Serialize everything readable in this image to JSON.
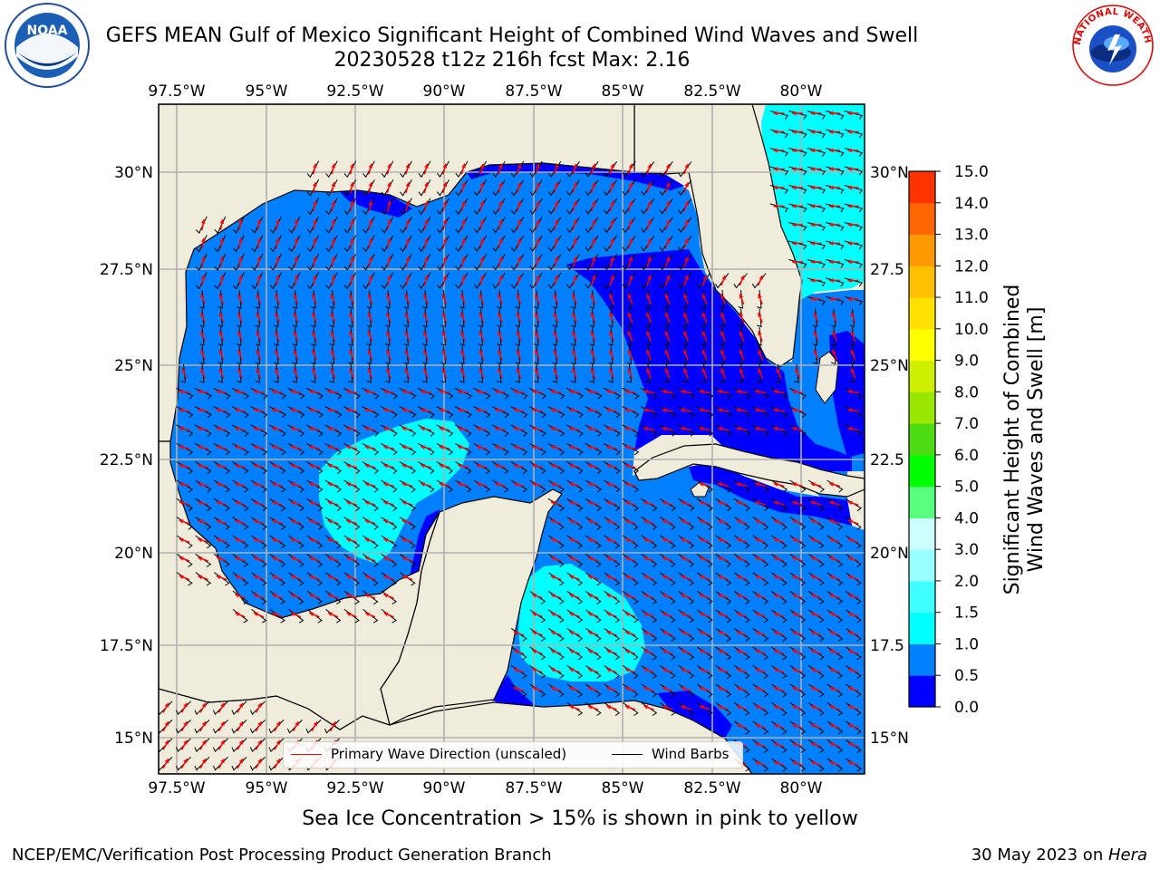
{
  "title": {
    "line1": "GEFS MEAN Gulf of Mexico Significant Height of Combined Wind Waves and Swell",
    "line2": "20230528 t12z 216h fcst   Max: 2.16"
  },
  "map": {
    "lon_ticks": [
      "97.5°W",
      "95°W",
      "92.5°W",
      "90°W",
      "87.5°W",
      "85°W",
      "82.5°W",
      "80°W"
    ],
    "lat_ticks": [
      "30°N",
      "27.5°N",
      "25°N",
      "22.5°N",
      "20°N",
      "17.5°N",
      "15°N"
    ],
    "lat_ticks_right": [
      "30°N",
      "27.5",
      "25°N",
      "22.5",
      "20°N",
      "17.5",
      "15°N"
    ],
    "land_color": "#efecdc",
    "colors": {
      "h0_05": "#0000ff",
      "h05_1": "#0080ff",
      "h1_15": "#00ffff",
      "h15_2": "#40ffff",
      "h2_3": "#99ffff",
      "arrow": "#ff0000",
      "barb": "#000000"
    }
  },
  "legend": {
    "wave": "Primary Wave Direction (unscaled)",
    "barb": "Wind Barbs"
  },
  "colorbar": {
    "title_line1": "Significant Height of Combined",
    "title_line2": "Wind Waves and Swell [m]",
    "levels": [
      "0.0",
      "0.5",
      "1.0",
      "1.5",
      "2.0",
      "3.0",
      "4.0",
      "5.0",
      "6.0",
      "7.0",
      "8.0",
      "9.0",
      "10.0",
      "11.0",
      "12.0",
      "13.0",
      "14.0",
      "15.0"
    ],
    "colors": [
      "#0000ff",
      "#0080ff",
      "#00ffff",
      "#40ffff",
      "#99ffff",
      "#ccffff",
      "#57ff7c",
      "#00ff00",
      "#4ddc14",
      "#99e600",
      "#ccf000",
      "#ffff00",
      "#ffe100",
      "#ffc000",
      "#ff9900",
      "#ff6600",
      "#ff3300",
      "#ff0000"
    ]
  },
  "footer": {
    "ice_note": "Sea Ice Concentration > 15% is shown in pink to yellow",
    "left": "NCEP/EMC/Verification Post Processing Product Generation Branch",
    "right_date": "30 May 2023 on ",
    "right_machine": "Hera"
  },
  "logos": {
    "noaa_text": "NOAA",
    "nws_text": "NATIONAL WEATHER SERVICE"
  }
}
